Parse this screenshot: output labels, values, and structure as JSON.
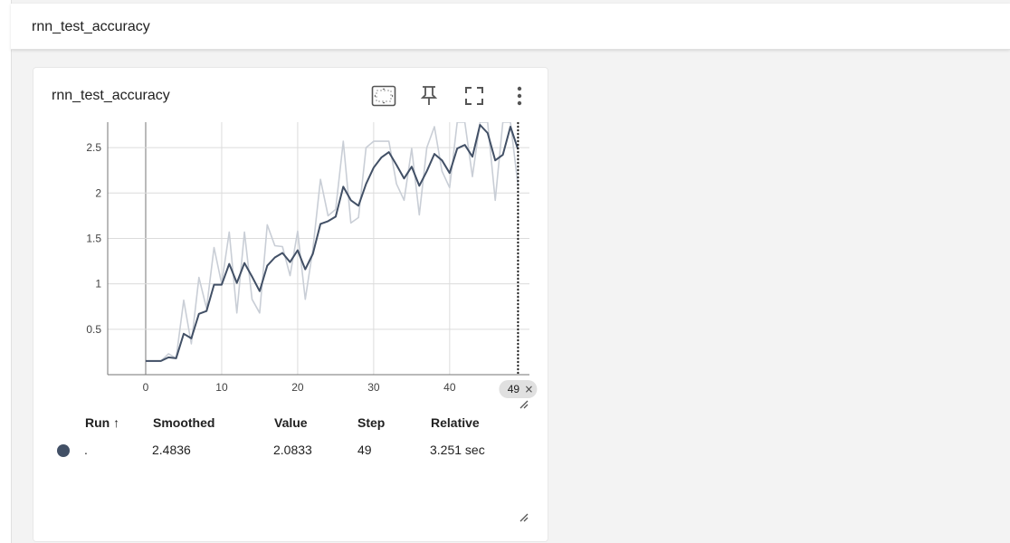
{
  "header": {
    "title": "rnn_test_accuracy"
  },
  "card": {
    "title": "rnn_test_accuracy",
    "icons": [
      "fit-domain-icon",
      "pin-icon",
      "fullscreen-icon",
      "more-vert-icon"
    ]
  },
  "chart_data": {
    "type": "line",
    "x_ticks": [
      "0",
      "10",
      "20",
      "30",
      "40"
    ],
    "y_ticks": [
      "0.5",
      "1",
      "1.5",
      "2",
      "2.5"
    ],
    "xlim": [
      -5,
      50.5
    ],
    "ylim": [
      0,
      2.78
    ],
    "grid": true,
    "cursor_step_label": "49",
    "series": [
      {
        "role": "raw",
        "color": "#c9ced6",
        "x": [
          0,
          1,
          2,
          3,
          4,
          5,
          6,
          7,
          8,
          9,
          10,
          11,
          12,
          13,
          14,
          15,
          16,
          17,
          18,
          19,
          20,
          21,
          22,
          23,
          24,
          25,
          26,
          27,
          28,
          29,
          30,
          31,
          32,
          33,
          34,
          35,
          36,
          37,
          38,
          39,
          40,
          41,
          42,
          43,
          44,
          45,
          46,
          47,
          48,
          49
        ],
        "y": [
          0.15,
          0.15,
          0.15,
          0.23,
          0.18,
          0.82,
          0.34,
          1.07,
          0.73,
          1.4,
          1.0,
          1.57,
          0.68,
          1.57,
          0.83,
          0.68,
          1.65,
          1.42,
          1.41,
          1.09,
          1.58,
          0.83,
          1.38,
          2.15,
          1.75,
          1.82,
          2.57,
          1.67,
          1.73,
          2.5,
          2.57,
          2.57,
          2.57,
          2.1,
          1.92,
          2.49,
          1.76,
          2.5,
          2.73,
          2.24,
          2.06,
          2.78,
          2.78,
          2.18,
          2.78,
          2.78,
          1.92,
          2.78,
          2.78,
          2.08
        ]
      },
      {
        "role": "smoothed",
        "color": "#425066",
        "x": [
          0,
          1,
          2,
          3,
          4,
          5,
          6,
          7,
          8,
          9,
          10,
          11,
          12,
          13,
          14,
          15,
          16,
          17,
          18,
          19,
          20,
          21,
          22,
          23,
          24,
          25,
          26,
          27,
          28,
          29,
          30,
          31,
          32,
          33,
          34,
          35,
          36,
          37,
          38,
          39,
          40,
          41,
          42,
          43,
          44,
          45,
          46,
          47,
          48,
          49
        ],
        "y": [
          0.15,
          0.15,
          0.15,
          0.19,
          0.18,
          0.45,
          0.4,
          0.67,
          0.7,
          0.99,
          0.99,
          1.22,
          1.01,
          1.23,
          1.08,
          0.92,
          1.2,
          1.29,
          1.34,
          1.24,
          1.37,
          1.16,
          1.33,
          1.66,
          1.69,
          1.74,
          2.07,
          1.92,
          1.86,
          2.1,
          2.28,
          2.39,
          2.45,
          2.31,
          2.16,
          2.29,
          2.08,
          2.24,
          2.43,
          2.36,
          2.22,
          2.49,
          2.53,
          2.4,
          2.75,
          2.66,
          2.36,
          2.42,
          2.73,
          2.48
        ]
      }
    ]
  },
  "table": {
    "headers": {
      "run": "Run ↑",
      "smoothed": "Smoothed",
      "value": "Value",
      "step": "Step",
      "relative": "Relative"
    },
    "rows": [
      {
        "run": ".",
        "smoothed": "2.4836",
        "value": "2.0833",
        "step": "49",
        "relative": "3.251 sec",
        "color": "#425066"
      }
    ]
  }
}
